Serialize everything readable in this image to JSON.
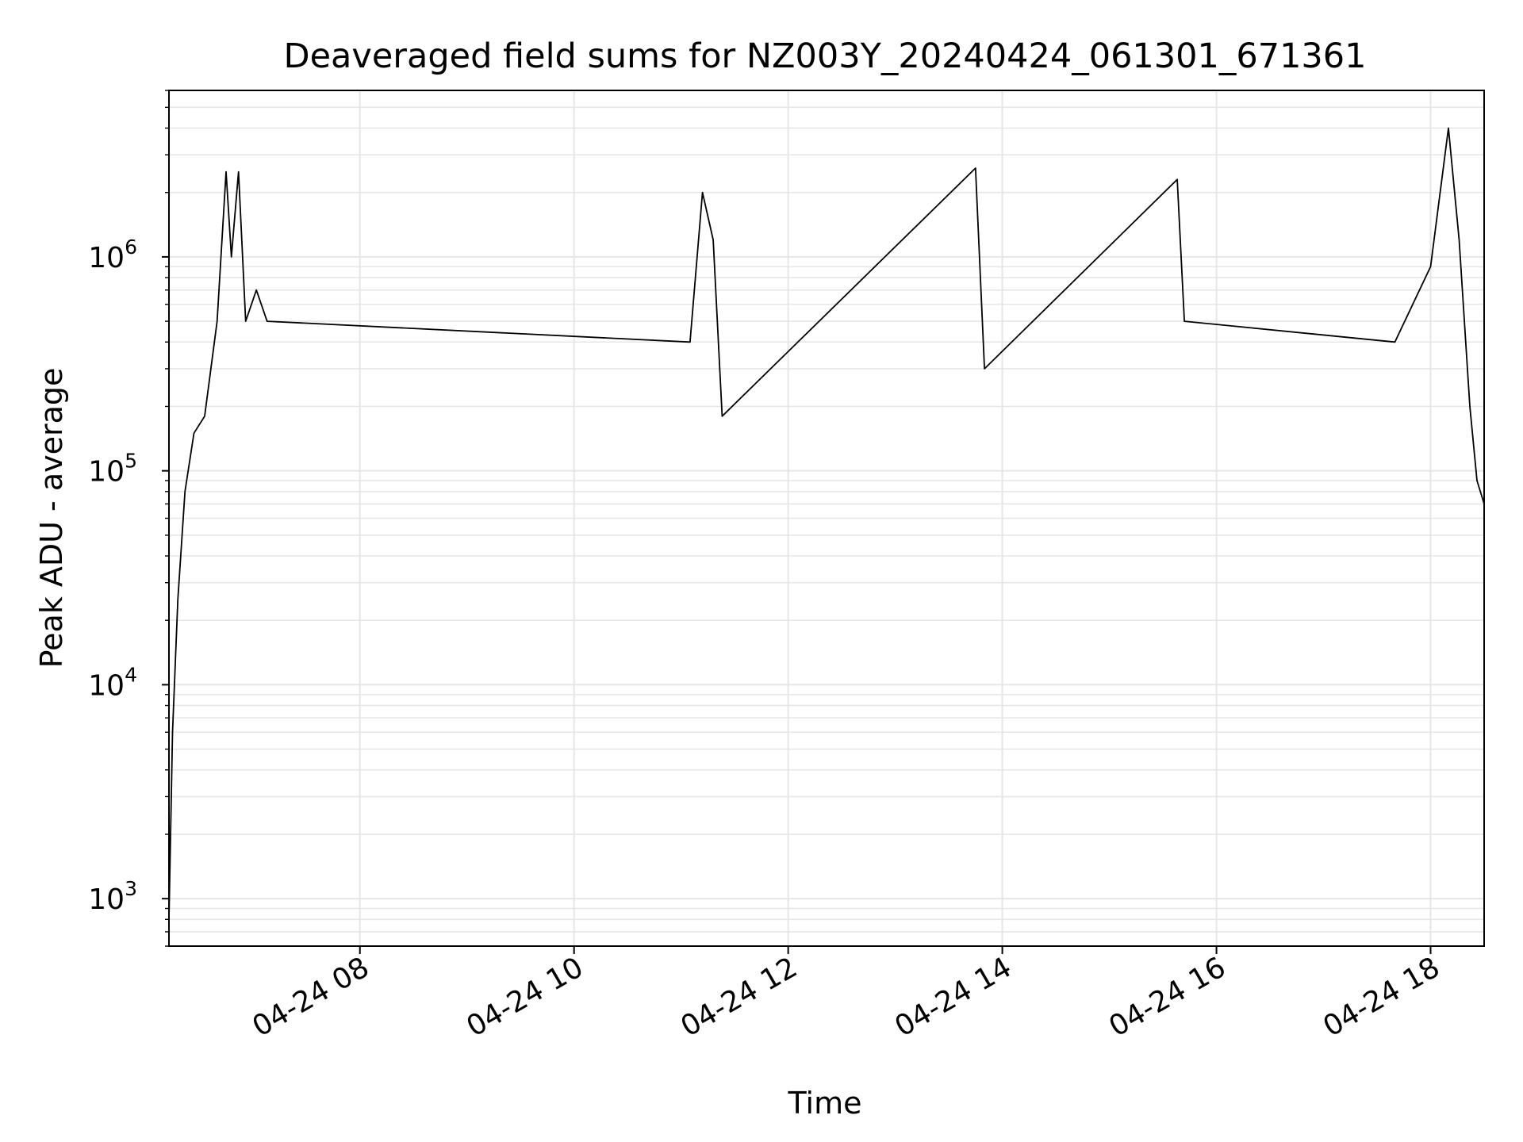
{
  "chart_data": {
    "type": "line",
    "title": "Deaveraged field sums for NZ003Y_20240424_061301_671361",
    "xlabel": "Time",
    "ylabel": "Peak ADU - average",
    "yscale": "log",
    "ylim": [
      600,
      6000000
    ],
    "xlim": [
      "2024-04-24 06:13",
      "2024-04-24 18:30"
    ],
    "grid": true,
    "x_tick_labels": [
      "04-24 08",
      "04-24 10",
      "04-24 12",
      "04-24 14",
      "04-24 16",
      "04-24 18"
    ],
    "x_tick_values": [
      "2024-04-24 08:00",
      "2024-04-24 10:00",
      "2024-04-24 12:00",
      "2024-04-24 14:00",
      "2024-04-24 16:00",
      "2024-04-24 18:00"
    ],
    "y_tick_labels": [
      {
        "base": "10",
        "exp": "3",
        "value": 1000
      },
      {
        "base": "10",
        "exp": "4",
        "value": 10000
      },
      {
        "base": "10",
        "exp": "5",
        "value": 100000
      },
      {
        "base": "10",
        "exp": "6",
        "value": 1000000
      }
    ],
    "series": [
      {
        "color": "#000000",
        "x": [
          "2024-04-24 06:13",
          "2024-04-24 06:15",
          "2024-04-24 06:18",
          "2024-04-24 06:22",
          "2024-04-24 06:27",
          "2024-04-24 06:33",
          "2024-04-24 06:40",
          "2024-04-24 06:45",
          "2024-04-24 06:48",
          "2024-04-24 06:52",
          "2024-04-24 06:56",
          "2024-04-24 07:02",
          "2024-04-24 07:08",
          "2024-04-24 11:05",
          "2024-04-24 11:12",
          "2024-04-24 11:18",
          "2024-04-24 11:23",
          "2024-04-24 13:45",
          "2024-04-24 13:50",
          "2024-04-24 15:38",
          "2024-04-24 15:42",
          "2024-04-24 17:40",
          "2024-04-24 18:00",
          "2024-04-24 18:10",
          "2024-04-24 18:16",
          "2024-04-24 18:22",
          "2024-04-24 18:26",
          "2024-04-24 18:30"
        ],
        "y": [
          800,
          6000,
          25000,
          80000,
          150000,
          180000,
          500000,
          2500000,
          1000000,
          2500000,
          500000,
          700000,
          500000,
          400000,
          2000000,
          1200000,
          180000,
          2600000,
          300000,
          2300000,
          500000,
          400000,
          900000,
          4000000,
          1200000,
          200000,
          90000,
          70000
        ]
      }
    ]
  }
}
